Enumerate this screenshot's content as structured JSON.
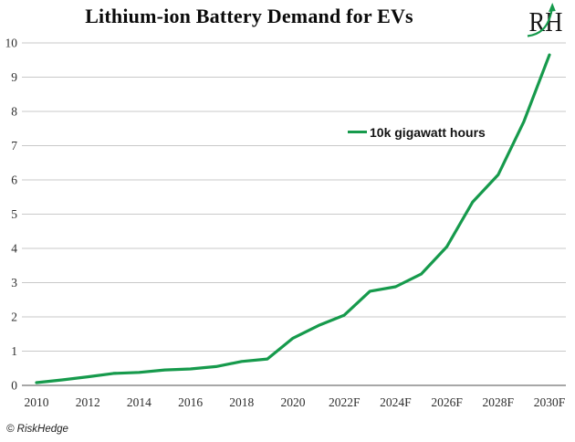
{
  "header": {
    "title": "Lithium-ion Battery Demand for EVs",
    "logo_text": "RH"
  },
  "footer": {
    "copyright": "© RiskHedge"
  },
  "colors": {
    "line": "#169a4c",
    "grid": "#c9c9c9",
    "axis": "#8a8a8a",
    "tick_text": "#2e2e2e"
  },
  "chart_data": {
    "type": "line",
    "title": "Lithium-ion Battery Demand for EVs",
    "xlabel": "",
    "ylabel": "",
    "ylim": [
      0,
      10
    ],
    "y_ticks": [
      0,
      1,
      2,
      3,
      4,
      5,
      6,
      7,
      8,
      9,
      10
    ],
    "grid": "horizontal",
    "legend_position": "center-right",
    "x": [
      2010,
      2011,
      2012,
      2013,
      2014,
      2015,
      2016,
      2017,
      2018,
      2019,
      2020,
      2021,
      2022,
      2023,
      2024,
      2025,
      2026,
      2027,
      2028,
      2029,
      2030
    ],
    "x_tick_labels": [
      "2010",
      "2012",
      "2014",
      "2016",
      "2018",
      "2020",
      "2022F",
      "2024F",
      "2026F",
      "2028F",
      "2030F"
    ],
    "series": [
      {
        "name": "10k gigawatt hours",
        "color": "#169a4c",
        "values": [
          0.08,
          0.16,
          0.25,
          0.35,
          0.38,
          0.45,
          0.48,
          0.55,
          0.7,
          0.77,
          1.38,
          1.75,
          2.05,
          2.75,
          2.88,
          3.25,
          4.05,
          5.35,
          6.15,
          7.7,
          9.65
        ]
      }
    ]
  }
}
